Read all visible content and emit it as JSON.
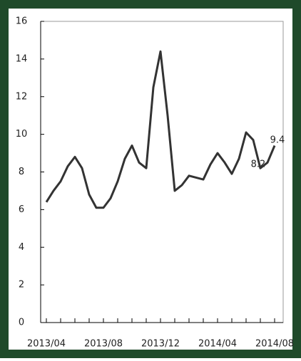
{
  "chart_data": {
    "type": "line",
    "categories": [
      "2013/04",
      null,
      null,
      null,
      null,
      null,
      null,
      null,
      "2013/08",
      null,
      null,
      null,
      null,
      null,
      null,
      null,
      "2013/12",
      null,
      null,
      null,
      null,
      null,
      null,
      null,
      "2014/04",
      null,
      null,
      null,
      null,
      null,
      null,
      null,
      "2014/08"
    ],
    "series": [
      {
        "color": "#333333",
        "values": [
          6.4,
          7.0,
          7.5,
          8.3,
          8.8,
          8.2,
          6.8,
          6.1,
          6.1,
          6.6,
          7.5,
          8.7,
          9.4,
          8.5,
          8.2,
          12.5,
          14.4,
          11.0,
          7.0,
          7.3,
          7.8,
          7.7,
          7.6,
          8.4,
          9.0,
          8.5,
          7.9,
          8.7,
          10.1,
          9.7,
          8.2,
          8.5,
          9.4
        ]
      }
    ],
    "ylim": [
      0,
      16
    ],
    "yticks": [
      0,
      2,
      4,
      6,
      8,
      10,
      12,
      14,
      16
    ],
    "annotations": [
      "8.2",
      "9.4"
    ]
  }
}
